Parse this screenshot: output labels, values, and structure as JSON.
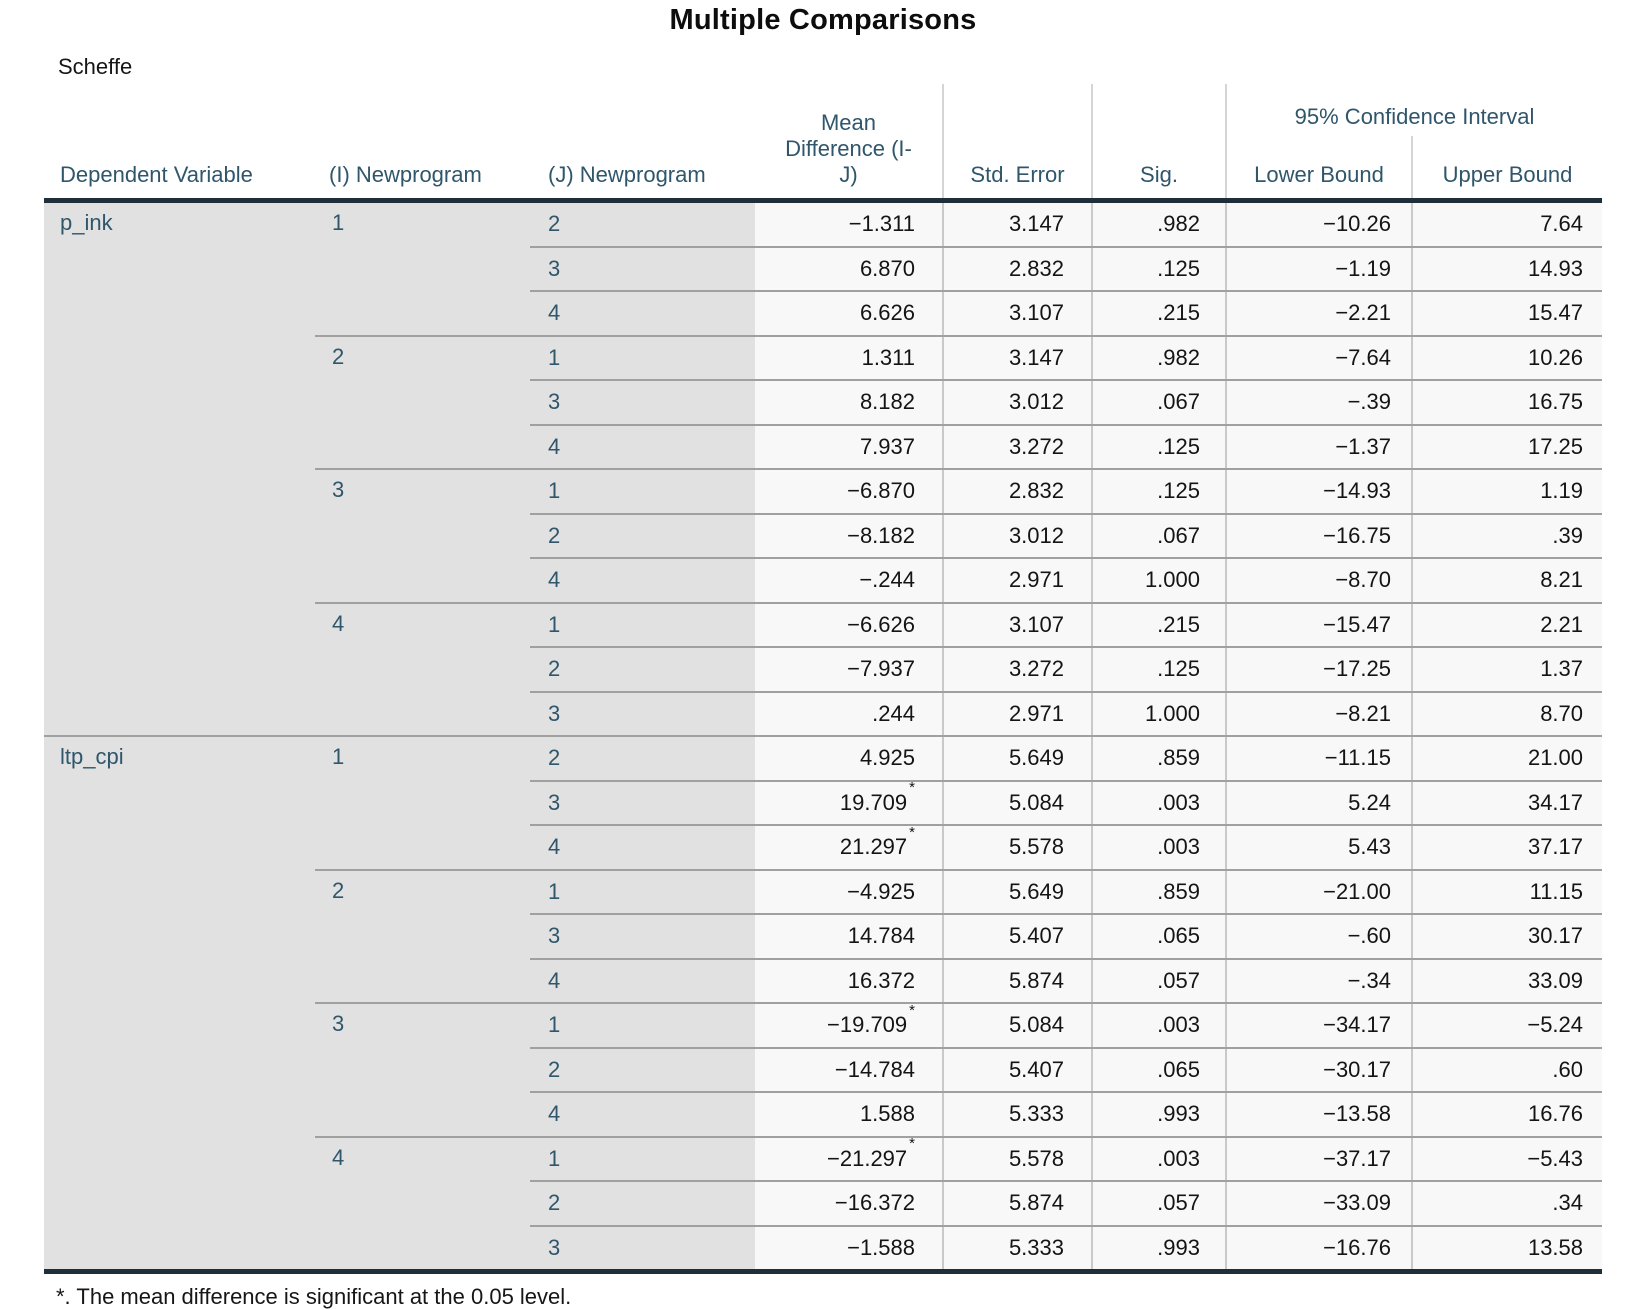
{
  "title": "Multiple Comparisons",
  "subtitle": "Scheffe",
  "footnote": "*. The mean difference is significant at the 0.05 level.",
  "star_symbol": "*",
  "colors": {
    "header_text": "#2f566b",
    "row_label_text": "#2f566b",
    "value_text": "#141414",
    "label_background": "#e1e1e1",
    "cell_background": "#f8f8f9",
    "heavy_rule": "#1e2f3a",
    "row_rule": "#a0a0a0",
    "column_rule": "#c9c9c9"
  },
  "header": {
    "dependent_variable": "Dependent Variable",
    "i_newprogram": "(I) Newprogram",
    "j_newprogram": "(J) Newprogram",
    "mean_difference": "Mean Difference (I-J)",
    "mean_difference_lines": [
      "Mean",
      "Difference (I-",
      "J)"
    ],
    "std_error": "Std. Error",
    "sig": "Sig.",
    "ci": "95% Confidence Interval",
    "lower_bound": "Lower Bound",
    "upper_bound": "Upper Bound"
  },
  "chart_data": {
    "type": "table",
    "test": "Scheffe",
    "sections": [
      {
        "dv": "p_ink",
        "groups": [
          {
            "i": "1",
            "comparisons": [
              {
                "j": "2",
                "md": "−1.311",
                "star": false,
                "se": "3.147",
                "sig": ".982",
                "lb": "−10.26",
                "ub": "7.64"
              },
              {
                "j": "3",
                "md": "6.870",
                "star": false,
                "se": "2.832",
                "sig": ".125",
                "lb": "−1.19",
                "ub": "14.93"
              },
              {
                "j": "4",
                "md": "6.626",
                "star": false,
                "se": "3.107",
                "sig": ".215",
                "lb": "−2.21",
                "ub": "15.47"
              }
            ]
          },
          {
            "i": "2",
            "comparisons": [
              {
                "j": "1",
                "md": "1.311",
                "star": false,
                "se": "3.147",
                "sig": ".982",
                "lb": "−7.64",
                "ub": "10.26"
              },
              {
                "j": "3",
                "md": "8.182",
                "star": false,
                "se": "3.012",
                "sig": ".067",
                "lb": "−.39",
                "ub": "16.75"
              },
              {
                "j": "4",
                "md": "7.937",
                "star": false,
                "se": "3.272",
                "sig": ".125",
                "lb": "−1.37",
                "ub": "17.25"
              }
            ]
          },
          {
            "i": "3",
            "comparisons": [
              {
                "j": "1",
                "md": "−6.870",
                "star": false,
                "se": "2.832",
                "sig": ".125",
                "lb": "−14.93",
                "ub": "1.19"
              },
              {
                "j": "2",
                "md": "−8.182",
                "star": false,
                "se": "3.012",
                "sig": ".067",
                "lb": "−16.75",
                "ub": ".39"
              },
              {
                "j": "4",
                "md": "−.244",
                "star": false,
                "se": "2.971",
                "sig": "1.000",
                "lb": "−8.70",
                "ub": "8.21"
              }
            ]
          },
          {
            "i": "4",
            "comparisons": [
              {
                "j": "1",
                "md": "−6.626",
                "star": false,
                "se": "3.107",
                "sig": ".215",
                "lb": "−15.47",
                "ub": "2.21"
              },
              {
                "j": "2",
                "md": "−7.937",
                "star": false,
                "se": "3.272",
                "sig": ".125",
                "lb": "−17.25",
                "ub": "1.37"
              },
              {
                "j": "3",
                "md": ".244",
                "star": false,
                "se": "2.971",
                "sig": "1.000",
                "lb": "−8.21",
                "ub": "8.70"
              }
            ]
          }
        ]
      },
      {
        "dv": "ltp_cpi",
        "groups": [
          {
            "i": "1",
            "comparisons": [
              {
                "j": "2",
                "md": "4.925",
                "star": false,
                "se": "5.649",
                "sig": ".859",
                "lb": "−11.15",
                "ub": "21.00"
              },
              {
                "j": "3",
                "md": "19.709",
                "star": true,
                "se": "5.084",
                "sig": ".003",
                "lb": "5.24",
                "ub": "34.17"
              },
              {
                "j": "4",
                "md": "21.297",
                "star": true,
                "se": "5.578",
                "sig": ".003",
                "lb": "5.43",
                "ub": "37.17"
              }
            ]
          },
          {
            "i": "2",
            "comparisons": [
              {
                "j": "1",
                "md": "−4.925",
                "star": false,
                "se": "5.649",
                "sig": ".859",
                "lb": "−21.00",
                "ub": "11.15"
              },
              {
                "j": "3",
                "md": "14.784",
                "star": false,
                "se": "5.407",
                "sig": ".065",
                "lb": "−.60",
                "ub": "30.17"
              },
              {
                "j": "4",
                "md": "16.372",
                "star": false,
                "se": "5.874",
                "sig": ".057",
                "lb": "−.34",
                "ub": "33.09"
              }
            ]
          },
          {
            "i": "3",
            "comparisons": [
              {
                "j": "1",
                "md": "−19.709",
                "star": true,
                "se": "5.084",
                "sig": ".003",
                "lb": "−34.17",
                "ub": "−5.24"
              },
              {
                "j": "2",
                "md": "−14.784",
                "star": false,
                "se": "5.407",
                "sig": ".065",
                "lb": "−30.17",
                "ub": ".60"
              },
              {
                "j": "4",
                "md": "1.588",
                "star": false,
                "se": "5.333",
                "sig": ".993",
                "lb": "−13.58",
                "ub": "16.76"
              }
            ]
          },
          {
            "i": "4",
            "comparisons": [
              {
                "j": "1",
                "md": "−21.297",
                "star": true,
                "se": "5.578",
                "sig": ".003",
                "lb": "−37.17",
                "ub": "−5.43"
              },
              {
                "j": "2",
                "md": "−16.372",
                "star": false,
                "se": "5.874",
                "sig": ".057",
                "lb": "−33.09",
                "ub": ".34"
              },
              {
                "j": "3",
                "md": "−1.588",
                "star": false,
                "se": "5.333",
                "sig": ".993",
                "lb": "−16.76",
                "ub": "13.58"
              }
            ]
          }
        ]
      }
    ]
  }
}
